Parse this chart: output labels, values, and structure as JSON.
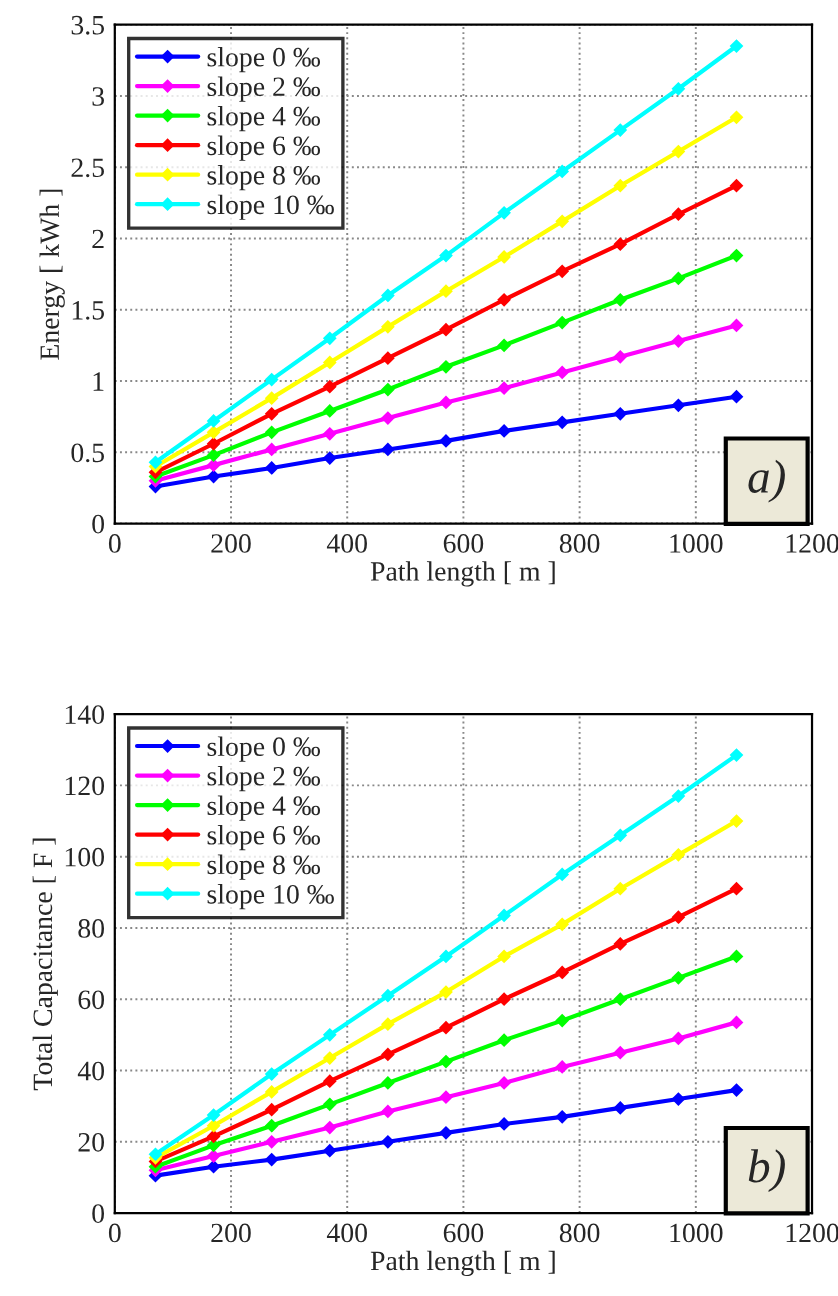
{
  "chart_data": [
    {
      "type": "line",
      "xlabel": "Path length [ m ]",
      "ylabel": "Energy [ kWh ]",
      "annotations": [
        "a)"
      ],
      "x": [
        70,
        170,
        270,
        370,
        470,
        570,
        670,
        770,
        870,
        970,
        1070
      ],
      "xlim": [
        0,
        1200
      ],
      "xticks": [
        0,
        200,
        400,
        600,
        800,
        1000,
        1200
      ],
      "ylim": [
        0,
        3.5
      ],
      "yticks": [
        0,
        0.5,
        1,
        1.5,
        2,
        2.5,
        3,
        3.5
      ],
      "grid": true,
      "legend": "top left",
      "marker": "diamond",
      "line_style": "solid",
      "series": [
        {
          "name": "slope 0 ‰",
          "color": "#0000ff",
          "values": [
            0.26,
            0.33,
            0.39,
            0.46,
            0.52,
            0.58,
            0.65,
            0.71,
            0.77,
            0.83,
            0.89
          ]
        },
        {
          "name": "slope 2 ‰",
          "color": "#ff00ff",
          "values": [
            0.3,
            0.41,
            0.52,
            0.63,
            0.74,
            0.85,
            0.95,
            1.06,
            1.17,
            1.28,
            1.39
          ]
        },
        {
          "name": "slope 4 ‰",
          "color": "#00ff00",
          "values": [
            0.33,
            0.48,
            0.64,
            0.79,
            0.94,
            1.1,
            1.25,
            1.41,
            1.57,
            1.72,
            1.88
          ]
        },
        {
          "name": "slope 6 ‰",
          "color": "#ff0000",
          "values": [
            0.36,
            0.56,
            0.77,
            0.96,
            1.16,
            1.36,
            1.57,
            1.77,
            1.96,
            2.17,
            2.37
          ]
        },
        {
          "name": "slope 8 ‰",
          "color": "#ffff00",
          "values": [
            0.4,
            0.64,
            0.88,
            1.13,
            1.38,
            1.63,
            1.87,
            2.12,
            2.37,
            2.61,
            2.85
          ]
        },
        {
          "name": "slope 10 ‰",
          "color": "#00ffff",
          "values": [
            0.43,
            0.72,
            1.01,
            1.3,
            1.6,
            1.88,
            2.18,
            2.47,
            2.76,
            3.05,
            3.35
          ]
        }
      ]
    },
    {
      "type": "line",
      "xlabel": "Path length [ m ]",
      "ylabel": "Total Capacitance [ F ]",
      "annotations": [
        "b)"
      ],
      "x": [
        70,
        170,
        270,
        370,
        470,
        570,
        670,
        770,
        870,
        970,
        1070
      ],
      "xlim": [
        0,
        1200
      ],
      "xticks": [
        0,
        200,
        400,
        600,
        800,
        1000,
        1200
      ],
      "ylim": [
        0,
        140
      ],
      "yticks": [
        0,
        20,
        40,
        60,
        80,
        100,
        120,
        140
      ],
      "grid": true,
      "legend": "top left",
      "marker": "diamond",
      "line_style": "solid",
      "series": [
        {
          "name": "slope 0 ‰",
          "color": "#0000ff",
          "values": [
            10.5,
            13,
            15,
            17.5,
            20,
            22.5,
            25,
            27,
            29.5,
            32,
            34.5
          ]
        },
        {
          "name": "slope 2 ‰",
          "color": "#ff00ff",
          "values": [
            12,
            16,
            20,
            24,
            28.5,
            32.5,
            36.5,
            41,
            45,
            49,
            53.5
          ]
        },
        {
          "name": "slope 4 ‰",
          "color": "#00ff00",
          "values": [
            13,
            19,
            24.5,
            30.5,
            36.5,
            42.5,
            48.5,
            54,
            60,
            66,
            72
          ]
        },
        {
          "name": "slope 6 ‰",
          "color": "#ff0000",
          "values": [
            14.5,
            21.5,
            29,
            37,
            44.5,
            52,
            60,
            67.5,
            75.5,
            83,
            91
          ]
        },
        {
          "name": "slope 8 ‰",
          "color": "#ffff00",
          "values": [
            15.5,
            24.5,
            34,
            43.5,
            53,
            62,
            72,
            81,
            91,
            100.5,
            110
          ]
        },
        {
          "name": "slope 10 ‰",
          "color": "#00ffff",
          "values": [
            16.5,
            27.5,
            39,
            50,
            61,
            72,
            83.5,
            95,
            106,
            117,
            128.5
          ]
        }
      ]
    }
  ]
}
